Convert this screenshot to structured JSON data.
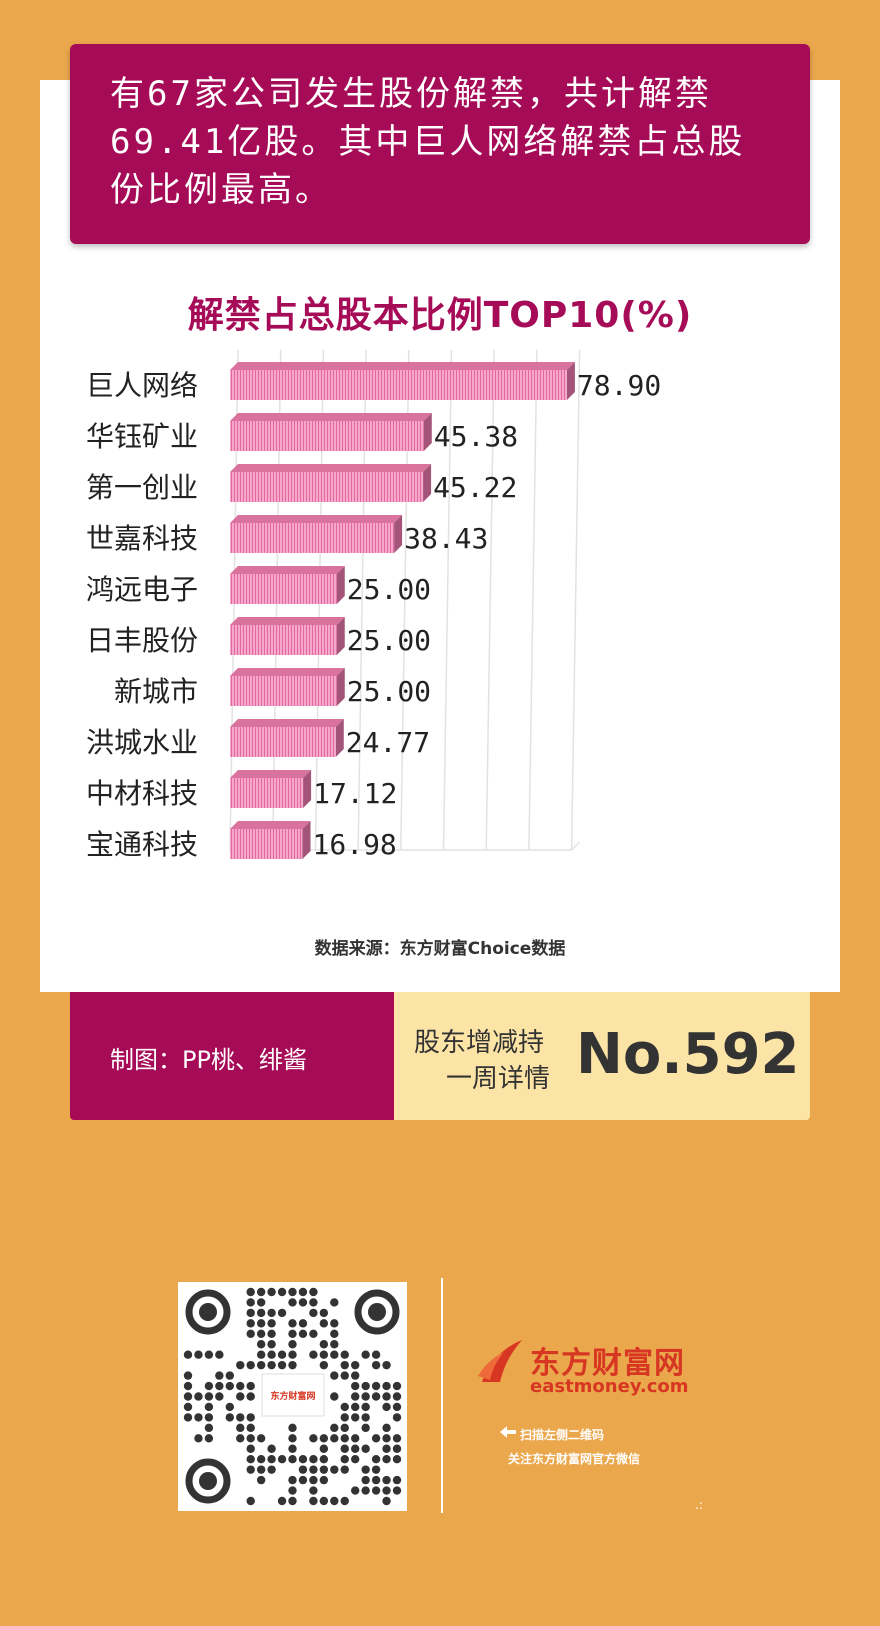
{
  "headline": "有67家公司发生股份解禁，共计解禁69.41亿股。其中巨人网络解禁占总股份比例最高。",
  "chart_title": "解禁占总股本比例TOP10(%)",
  "source": "数据来源：东方财富Choice数据",
  "footer": {
    "credit": "制图：PP桃、绯酱",
    "weekly_line1": "股东增减持",
    "weekly_line2": "一周详情",
    "issue_no": "No.592"
  },
  "brand": {
    "name": "东方财富网",
    "domain": "eastmoney.com",
    "scan_line1": "扫描左侧二维码",
    "scan_line2": "关注东方财富网官方微信",
    "qr_center_text": "东方财富网",
    "dots": ".:"
  },
  "colors": {
    "background": "#EBA74C",
    "accent": "#A60B57",
    "bar": "#F49AC1",
    "footer_light": "#FBE4A5",
    "brand_red": "#D73722"
  },
  "chart_data": {
    "type": "bar",
    "orientation": "horizontal",
    "title": "解禁占总股本比例TOP10(%)",
    "categories": [
      "巨人网络",
      "华钰矿业",
      "第一创业",
      "世嘉科技",
      "鸿远电子",
      "日丰股份",
      "新城市",
      "洪城水业",
      "中材科技",
      "宝通科技"
    ],
    "values": [
      78.9,
      45.38,
      45.22,
      38.43,
      25.0,
      25.0,
      25.0,
      24.77,
      17.12,
      16.98
    ],
    "value_labels": [
      "78.90",
      "45.38",
      "45.22",
      "38.43",
      "25.00",
      "25.00",
      "25.00",
      "24.77",
      "17.12",
      "16.98"
    ],
    "xlim": [
      0,
      80
    ],
    "grid": true,
    "legend": "none"
  }
}
